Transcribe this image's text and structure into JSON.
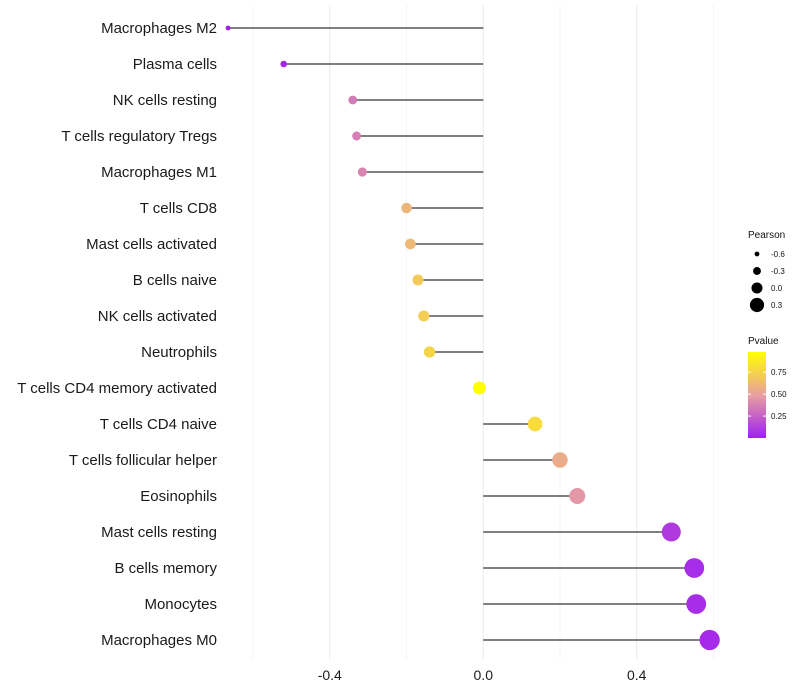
{
  "chart_data": {
    "type": "lollipop",
    "title": "",
    "xlabel": "",
    "ylabel": "",
    "xlim": [
      -0.66,
      0.63
    ],
    "xticks": [
      -0.4,
      0.0,
      0.4
    ],
    "xtick_labels": [
      "-0.4",
      "0.0",
      "0.4"
    ],
    "grid": true,
    "baseline": 0,
    "categories": [
      "Macrophages M2",
      "Plasma cells",
      "NK cells resting",
      "T cells regulatory  Tregs",
      "Macrophages M1",
      "T cells CD8",
      "Mast cells activated",
      "B cells naive",
      "NK cells activated",
      "Neutrophils",
      "T cells CD4 memory activated",
      "T cells CD4 naive",
      "T cells follicular helper",
      "Eosinophils",
      "Mast cells resting",
      "B cells memory",
      "Monocytes",
      "Macrophages M0"
    ],
    "pearson": [
      -0.665,
      -0.52,
      -0.34,
      -0.33,
      -0.315,
      -0.2,
      -0.19,
      -0.17,
      -0.155,
      -0.14,
      -0.01,
      0.135,
      0.2,
      0.245,
      0.49,
      0.55,
      0.555,
      0.59
    ],
    "pvalue": [
      0.0,
      0.03,
      0.35,
      0.36,
      0.38,
      0.6,
      0.62,
      0.7,
      0.72,
      0.76,
      0.98,
      0.8,
      0.55,
      0.46,
      0.1,
      0.05,
      0.05,
      0.04
    ],
    "legend": {
      "size_title": "Pearson",
      "size_entries": [
        {
          "label": "-0.6",
          "value": -0.6
        },
        {
          "label": "-0.3",
          "value": -0.3
        },
        {
          "label": "0.0",
          "value": 0.0
        },
        {
          "label": "0.3",
          "value": 0.3
        }
      ],
      "color_title": "Pvalue",
      "color_ticks": [
        {
          "label": "0.75",
          "value": 0.75
        },
        {
          "label": "0.50",
          "value": 0.5
        },
        {
          "label": "0.25",
          "value": 0.25
        }
      ],
      "color_range": [
        0.0,
        0.98
      ],
      "color_low": "#a020f0",
      "color_mid": "#e8a0a0",
      "color_high": "#ffff00",
      "position": "right"
    }
  }
}
